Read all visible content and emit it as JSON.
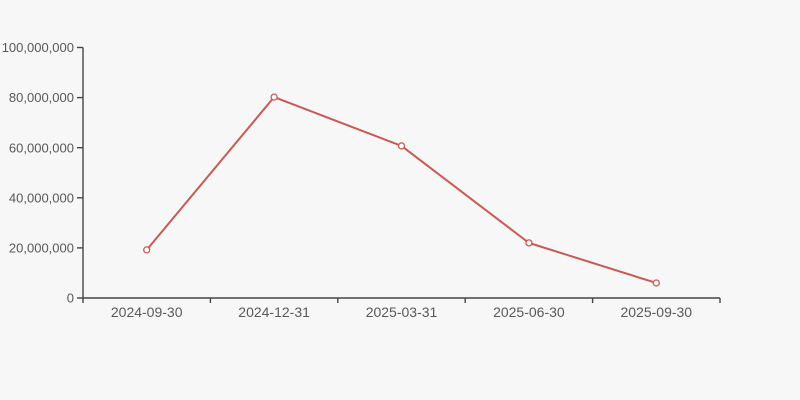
{
  "chart": {
    "background_color": "#f7f7f7",
    "line_color": "#c85a52",
    "marker_fill_color": "#ffffff",
    "axis_color": "#454545",
    "label_color": "#595959"
  },
  "chart_data": {
    "type": "line",
    "categories": [
      "2024-09-30",
      "2024-12-31",
      "2025-03-31",
      "2025-06-30",
      "2025-09-30"
    ],
    "values": [
      19200000,
      80200000,
      60700000,
      22000000,
      6000000
    ],
    "title": "",
    "xlabel": "",
    "ylabel": "",
    "ylim": [
      0,
      100000000
    ],
    "ytick_interval": 20000000,
    "ytick_labels": [
      "0",
      "20,000,000",
      "40,000,000",
      "60,000,000",
      "80,000,000",
      "100,000,000"
    ],
    "grid": false,
    "legend": false,
    "marker": "hollow-circle"
  }
}
